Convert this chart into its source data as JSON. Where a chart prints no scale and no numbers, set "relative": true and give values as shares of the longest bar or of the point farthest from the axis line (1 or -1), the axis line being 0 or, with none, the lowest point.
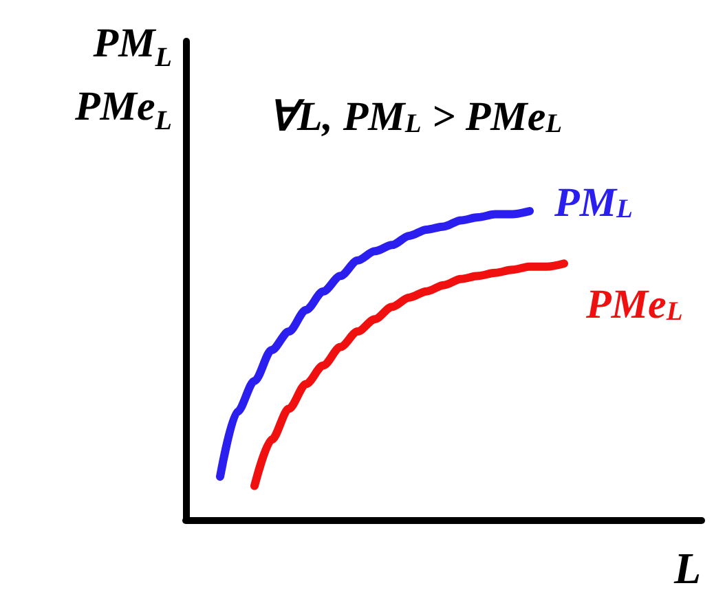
{
  "chart_data": {
    "type": "line",
    "relative": true,
    "marker": "none",
    "xlabel": "L",
    "ylabel": "PM$_{L}$\nPMe$_{L}$",
    "annotations": [
      "∀L, PM$_{L}$ > PMe$_{L}$"
    ],
    "categories": [
      null,
      null,
      null,
      null,
      null,
      null,
      null,
      null,
      null,
      null,
      null,
      null,
      null,
      null,
      null,
      null,
      null,
      null,
      null,
      null,
      null,
      null,
      null,
      null,
      null,
      null,
      null,
      null,
      null,
      null,
      null
    ],
    "series": [
      {
        "name": "PM$_{L}$",
        "color": "#2b1ff0",
        "values": [
          null,
          null,
          0.14,
          0.35,
          0.45,
          0.55,
          0.61,
          0.68,
          0.74,
          0.79,
          0.84,
          0.87,
          0.89,
          0.92,
          0.94,
          0.95,
          0.97,
          0.98,
          0.99,
          0.99,
          1,
          null,
          null,
          null,
          null,
          null,
          null,
          null,
          null,
          null,
          null
        ]
      },
      {
        "name": "PMe$_{L}$",
        "color": "#f01010",
        "values": [
          null,
          null,
          null,
          null,
          0.11,
          0.26,
          0.36,
          0.44,
          0.5,
          0.56,
          0.61,
          0.65,
          0.69,
          0.72,
          0.74,
          0.76,
          0.78,
          0.79,
          0.8,
          0.81,
          0.82,
          0.82,
          0.83,
          null,
          null,
          null,
          null,
          null,
          null,
          null,
          null
        ]
      }
    ]
  }
}
